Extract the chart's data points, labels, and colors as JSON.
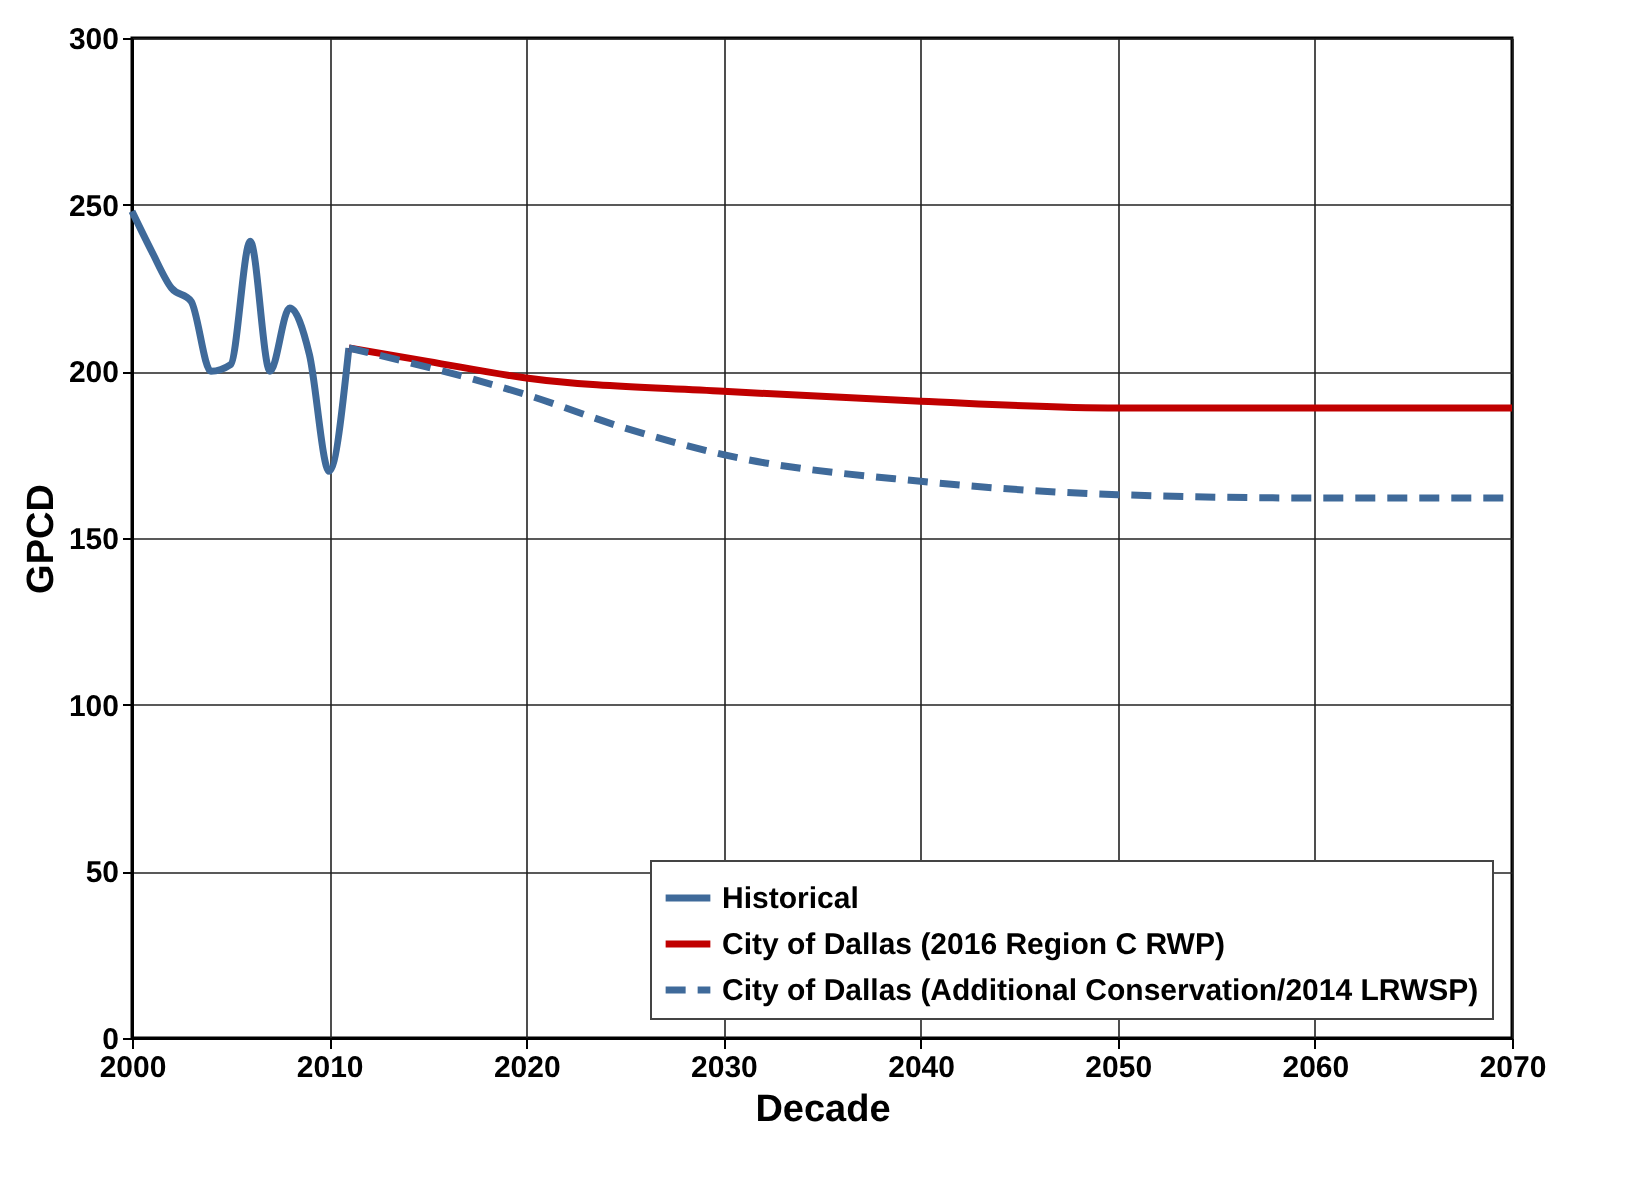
{
  "chart_data": {
    "type": "line",
    "xlabel": "Decade",
    "ylabel": "GPCD",
    "xlim": [
      2000,
      2070
    ],
    "xticks": [
      2000,
      2010,
      2020,
      2030,
      2040,
      2050,
      2060,
      2070
    ],
    "ylim": [
      0,
      300
    ],
    "yticks": [
      0,
      50,
      100,
      150,
      200,
      250,
      300
    ],
    "grid": true,
    "legend": "bottom right",
    "series": [
      {
        "name": "Historical",
        "color": "#3f6a9a",
        "line_style": "solid",
        "x": [
          2000,
          2001,
          2002,
          2003,
          2004,
          2005,
          2006,
          2007,
          2008,
          2009,
          2010,
          2011
        ],
        "values": [
          248,
          236,
          225,
          221,
          200,
          202,
          239,
          200,
          219,
          205,
          170,
          207
        ]
      },
      {
        "name": "City of Dallas (2016 Region C RWP)",
        "color": "#c00000",
        "line_style": "solid",
        "x": [
          2011,
          2015,
          2020,
          2030,
          2040,
          2050,
          2060,
          2070
        ],
        "values": [
          207,
          203,
          198,
          194,
          191,
          189,
          189,
          189
        ]
      },
      {
        "name": "City of Dallas (Additional Conservation/2014 LRWSP)",
        "color": "#3f6a9a",
        "line_style": "dashed",
        "x": [
          2011,
          2020,
          2025,
          2030,
          2040,
          2050,
          2060,
          2070
        ],
        "values": [
          207,
          193,
          183,
          175,
          167,
          163,
          162,
          162
        ]
      }
    ]
  }
}
